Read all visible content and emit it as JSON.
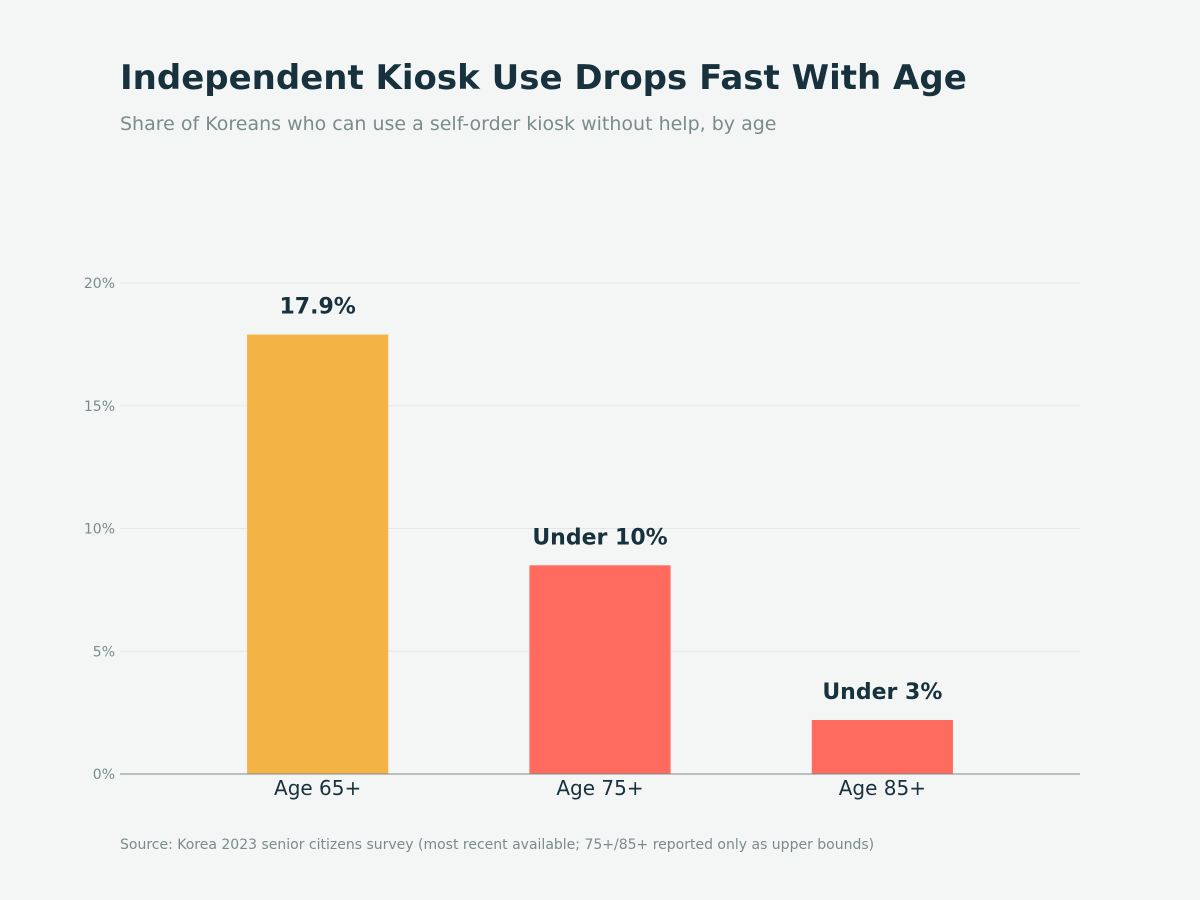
{
  "title": "Independent Kiosk Use Drops Fast With Age",
  "subtitle": "Share of Koreans who can use a self-order kiosk without help, by age",
  "source": "Source: Korea 2023 senior citizens survey (most recent available; 75+/85+ reported only as upper bounds)",
  "chart_data": {
    "type": "bar",
    "categories": [
      "Age 65+",
      "Age 75+",
      "Age 85+"
    ],
    "values": [
      17.9,
      8.5,
      2.2
    ],
    "data_labels": [
      "17.9%",
      "Under 10%",
      "Under 3%"
    ],
    "colors": [
      "#f3b445",
      "#ff6b5e",
      "#ff6b5e"
    ],
    "ylim": [
      0,
      20
    ],
    "yticks": [
      0,
      5,
      10,
      15,
      20
    ],
    "ytick_labels": [
      "0%",
      "5%",
      "10%",
      "15%",
      "20%"
    ],
    "xlabel": "",
    "ylabel": "",
    "grid": true
  }
}
